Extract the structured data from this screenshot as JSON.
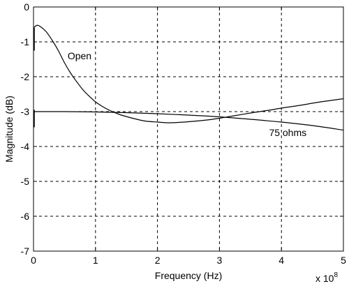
{
  "chart_data": {
    "type": "line",
    "title": "",
    "xlabel": "Frequency (Hz)",
    "ylabel": "Magnitude (dB)",
    "x_multiplier_label": "x 10",
    "x_multiplier_exponent": "8",
    "xlim": [
      0,
      5
    ],
    "ylim": [
      -7,
      0
    ],
    "xticks": [
      "0",
      "1",
      "2",
      "3",
      "4",
      "5"
    ],
    "yticks": [
      "0",
      "-1",
      "-2",
      "-3",
      "-4",
      "-5",
      "-6",
      "-7"
    ],
    "grid": true,
    "series": [
      {
        "name": "Open",
        "x": [
          0,
          0.05,
          0.1,
          0.2,
          0.3,
          0.4,
          0.5,
          0.6,
          0.7,
          0.8,
          0.9,
          1.0,
          1.1,
          1.2,
          1.3,
          1.4,
          1.6,
          1.8,
          2.0,
          2.2,
          2.5,
          2.8,
          3.0,
          3.2,
          3.5,
          3.8,
          4.0,
          4.3,
          4.6,
          5.0
        ],
        "y": [
          -0.6,
          -0.53,
          -0.55,
          -0.7,
          -0.95,
          -1.25,
          -1.6,
          -1.9,
          -2.15,
          -2.38,
          -2.56,
          -2.72,
          -2.84,
          -2.94,
          -3.02,
          -3.09,
          -3.19,
          -3.27,
          -3.3,
          -3.32,
          -3.29,
          -3.24,
          -3.19,
          -3.13,
          -3.04,
          -2.96,
          -2.9,
          -2.82,
          -2.73,
          -2.63
        ]
      },
      {
        "name": "75 ohms",
        "x": [
          0,
          0.5,
          1.0,
          1.5,
          2.0,
          2.5,
          3.0,
          3.5,
          4.0,
          4.5,
          5.0
        ],
        "y": [
          -3.0,
          -3.0,
          -3.01,
          -3.03,
          -3.06,
          -3.1,
          -3.15,
          -3.22,
          -3.3,
          -3.4,
          -3.53
        ]
      }
    ],
    "annotations": [
      {
        "text": "Open",
        "x": 0.55,
        "y": -1.5
      },
      {
        "text": "75 ohms",
        "x": 3.8,
        "y": -3.7
      }
    ],
    "colors": {
      "line": "#000000",
      "grid": "#000000",
      "background": "#ffffff"
    }
  }
}
